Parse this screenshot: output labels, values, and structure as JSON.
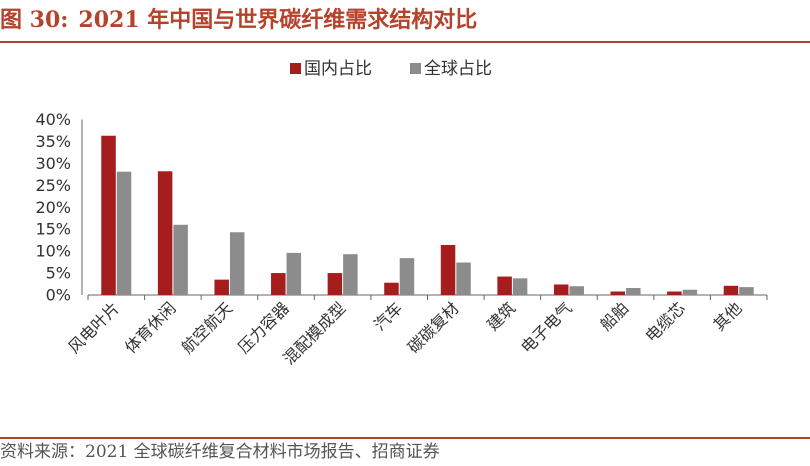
{
  "figure": {
    "number": "图 30:",
    "title": "2021 年中国与世界碳纤维需求结构对比"
  },
  "source": "资料来源：2021 全球碳纤维复合材料市场报告、招商证券",
  "colors": {
    "domestic": "#a51d1d",
    "global": "#8c8c8c",
    "accent": "#b5422b"
  },
  "chart_data": {
    "type": "bar",
    "title": "",
    "xlabel": "",
    "ylabel": "",
    "ylim": [
      0,
      40
    ],
    "yticks": [
      "0%",
      "5%",
      "10%",
      "15%",
      "20%",
      "25%",
      "30%",
      "35%",
      "40%"
    ],
    "grid": false,
    "legend_position": "top-center",
    "categories": [
      "风电叶片",
      "体育休闲",
      "航空航天",
      "压力容器",
      "混配模成型",
      "汽车",
      "碳碳复材",
      "建筑",
      "电子电气",
      "船舶",
      "电缆芯",
      "其他"
    ],
    "series": [
      {
        "name": "国内占比",
        "values": [
          36.3,
          28.2,
          3.5,
          5.0,
          5.0,
          2.8,
          11.4,
          4.2,
          2.4,
          0.8,
          0.8,
          2.1
        ]
      },
      {
        "name": "全球占比",
        "values": [
          28.1,
          16.0,
          14.3,
          9.6,
          9.3,
          8.4,
          7.4,
          3.8,
          2.0,
          1.6,
          1.2,
          1.8
        ]
      }
    ]
  }
}
